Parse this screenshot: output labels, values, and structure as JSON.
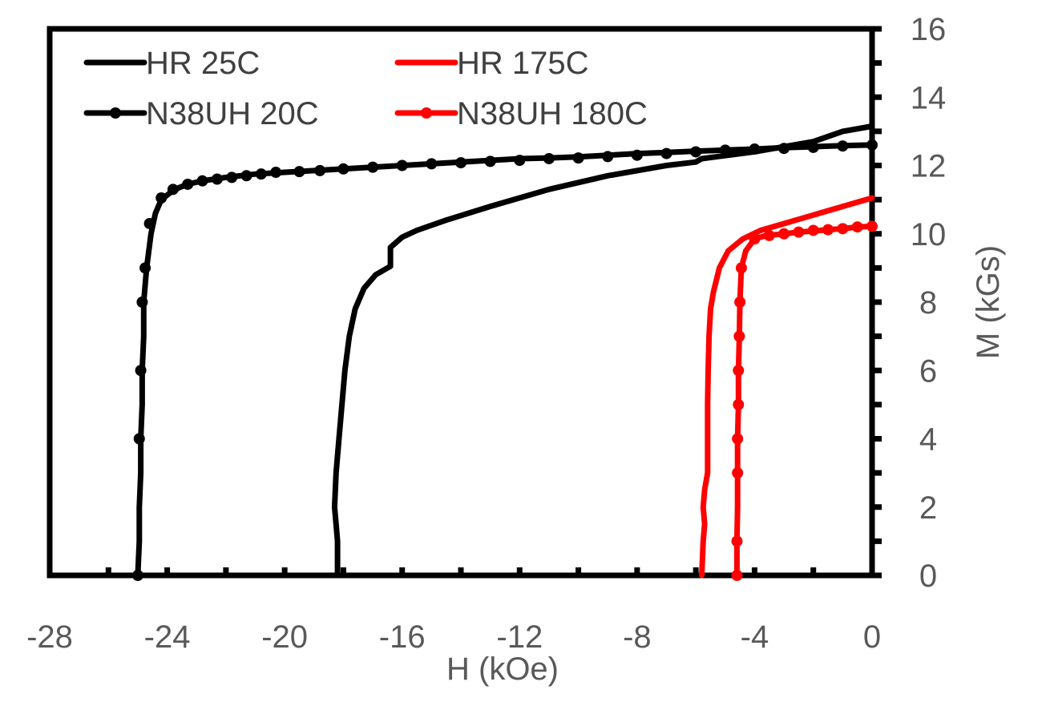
{
  "chart_data": {
    "type": "line",
    "title": "",
    "xlabel": "H (kOe)",
    "ylabel": "M (kGs)",
    "xlim": [
      -28,
      0
    ],
    "ylim": [
      0,
      16
    ],
    "x_ticks": [
      -28,
      -24,
      -20,
      -16,
      -12,
      -8,
      -4,
      0
    ],
    "y_ticks": [
      0,
      2,
      4,
      6,
      8,
      10,
      12,
      14,
      16
    ],
    "x_tick_labels": [
      "-28",
      "-24",
      "-20",
      "-16",
      "-12",
      "-8",
      "-4",
      "0"
    ],
    "y_tick_labels": [
      "0",
      "2",
      "4",
      "6",
      "8",
      "10",
      "12",
      "14",
      "16"
    ],
    "y_axis_position": "right",
    "grid": false,
    "legend_position": "top",
    "series": [
      {
        "name": "HR 25C",
        "color": "#000000",
        "markers": false,
        "points": [
          [
            -18.2,
            0
          ],
          [
            -18.2,
            1
          ],
          [
            -18.25,
            1.5
          ],
          [
            -18.3,
            2
          ],
          [
            -18.25,
            3
          ],
          [
            -18.15,
            4
          ],
          [
            -18.05,
            5
          ],
          [
            -17.95,
            6
          ],
          [
            -17.8,
            7
          ],
          [
            -17.6,
            7.8
          ],
          [
            -17.3,
            8.4
          ],
          [
            -16.9,
            8.8
          ],
          [
            -16.5,
            9.0
          ],
          [
            -16.4,
            9.05
          ],
          [
            -16.4,
            9.6
          ],
          [
            -16.0,
            9.9
          ],
          [
            -15.5,
            10.1
          ],
          [
            -14.5,
            10.4
          ],
          [
            -13.0,
            10.8
          ],
          [
            -11.0,
            11.3
          ],
          [
            -9.0,
            11.7
          ],
          [
            -7.0,
            12.0
          ],
          [
            -6.0,
            12.1
          ],
          [
            -5.8,
            12.2
          ],
          [
            -4.0,
            12.4
          ],
          [
            -2.0,
            12.7
          ],
          [
            -1.0,
            13.0
          ],
          [
            0,
            13.15
          ]
        ]
      },
      {
        "name": "HR 175C",
        "color": "#ff0000",
        "markers": false,
        "points": [
          [
            -5.8,
            0
          ],
          [
            -5.75,
            1
          ],
          [
            -5.7,
            1.5
          ],
          [
            -5.75,
            2
          ],
          [
            -5.7,
            2.5
          ],
          [
            -5.6,
            3
          ],
          [
            -5.6,
            4
          ],
          [
            -5.6,
            5
          ],
          [
            -5.58,
            6
          ],
          [
            -5.55,
            7
          ],
          [
            -5.5,
            7.8
          ],
          [
            -5.4,
            8.3
          ],
          [
            -5.2,
            9.0
          ],
          [
            -4.9,
            9.5
          ],
          [
            -4.4,
            9.85
          ],
          [
            -3.8,
            10.1
          ],
          [
            -3.0,
            10.3
          ],
          [
            -2.0,
            10.55
          ],
          [
            -1.0,
            10.8
          ],
          [
            0,
            11.05
          ]
        ]
      },
      {
        "name": "N38UH 20C",
        "color": "#000000",
        "markers": true,
        "points": [
          [
            -25.0,
            0
          ],
          [
            -24.95,
            1
          ],
          [
            -24.95,
            2
          ],
          [
            -24.9,
            3
          ],
          [
            -24.9,
            4
          ],
          [
            -24.85,
            5
          ],
          [
            -24.85,
            6
          ],
          [
            -24.8,
            7
          ],
          [
            -24.8,
            8
          ],
          [
            -24.7,
            9
          ],
          [
            -24.55,
            10
          ],
          [
            -24.4,
            10.6
          ],
          [
            -24.2,
            11.0
          ],
          [
            -23.9,
            11.2
          ],
          [
            -23.6,
            11.35
          ],
          [
            -23.3,
            11.45
          ],
          [
            -22.8,
            11.55
          ],
          [
            -22.0,
            11.65
          ],
          [
            -21.0,
            11.75
          ],
          [
            -20.0,
            11.8
          ],
          [
            -19.0,
            11.85
          ],
          [
            -18.0,
            11.9
          ],
          [
            -17.0,
            11.95
          ],
          [
            -16.0,
            12.0
          ],
          [
            -15.0,
            12.05
          ],
          [
            -14.0,
            12.1
          ],
          [
            -13.0,
            12.15
          ],
          [
            -12.0,
            12.2
          ],
          [
            -11.0,
            12.22
          ],
          [
            -10.0,
            12.25
          ],
          [
            -9.0,
            12.3
          ],
          [
            -8.0,
            12.35
          ],
          [
            -7.0,
            12.38
          ],
          [
            -6.0,
            12.42
          ],
          [
            -5.0,
            12.45
          ],
          [
            -4.0,
            12.48
          ],
          [
            -3.0,
            12.52
          ],
          [
            -2.0,
            12.55
          ],
          [
            -1.0,
            12.58
          ],
          [
            0,
            12.6
          ]
        ]
      },
      {
        "name": "N38UH 180C",
        "color": "#ff0000",
        "markers": true,
        "points": [
          [
            -4.6,
            0
          ],
          [
            -4.6,
            1
          ],
          [
            -4.58,
            2
          ],
          [
            -4.58,
            3
          ],
          [
            -4.58,
            4
          ],
          [
            -4.55,
            5
          ],
          [
            -4.55,
            6
          ],
          [
            -4.52,
            7
          ],
          [
            -4.5,
            8
          ],
          [
            -4.45,
            9
          ],
          [
            -4.3,
            9.5
          ],
          [
            -4.0,
            9.85
          ],
          [
            -3.6,
            9.95
          ],
          [
            -3.0,
            10.0
          ],
          [
            -2.5,
            10.05
          ],
          [
            -2.0,
            10.08
          ],
          [
            -1.5,
            10.12
          ],
          [
            -1.0,
            10.15
          ],
          [
            -0.5,
            10.2
          ],
          [
            0,
            10.22
          ]
        ]
      }
    ],
    "marker_points": {
      "N38UH 20C": [
        [
          -25.0,
          0
        ],
        [
          -24.95,
          4
        ],
        [
          -24.9,
          6
        ],
        [
          -24.85,
          8
        ],
        [
          -24.75,
          9
        ],
        [
          -24.6,
          10.3
        ],
        [
          -24.2,
          11.05
        ],
        [
          -23.8,
          11.3
        ],
        [
          -23.3,
          11.45
        ],
        [
          -22.8,
          11.55
        ],
        [
          -22.3,
          11.6
        ],
        [
          -21.8,
          11.65
        ],
        [
          -21.3,
          11.7
        ],
        [
          -20.8,
          11.75
        ],
        [
          -20.3,
          11.8
        ],
        [
          -19.5,
          11.82
        ],
        [
          -18.8,
          11.85
        ],
        [
          -18.0,
          11.9
        ],
        [
          -17.0,
          11.95
        ],
        [
          -16.0,
          12.0
        ],
        [
          -15.0,
          12.05
        ],
        [
          -14.0,
          12.08
        ],
        [
          -13.0,
          12.12
        ],
        [
          -12.0,
          12.15
        ],
        [
          -11.0,
          12.2
        ],
        [
          -10.0,
          12.22
        ],
        [
          -9.0,
          12.26
        ],
        [
          -8.0,
          12.3
        ],
        [
          -7.0,
          12.35
        ],
        [
          -6.0,
          12.4
        ],
        [
          -5.0,
          12.45
        ],
        [
          -4.0,
          12.48
        ],
        [
          -3.0,
          12.5
        ],
        [
          -2.0,
          12.53
        ],
        [
          -1.0,
          12.57
        ],
        [
          0,
          12.6
        ]
      ],
      "N38UH 180C": [
        [
          -4.6,
          0
        ],
        [
          -4.6,
          1
        ],
        [
          -4.58,
          3
        ],
        [
          -4.58,
          4
        ],
        [
          -4.55,
          5
        ],
        [
          -4.55,
          6
        ],
        [
          -4.52,
          7
        ],
        [
          -4.5,
          8
        ],
        [
          -4.45,
          9
        ],
        [
          -4.0,
          9.85
        ],
        [
          -3.5,
          9.95
        ],
        [
          -3.0,
          10.0
        ],
        [
          -2.5,
          10.05
        ],
        [
          -2.0,
          10.1
        ],
        [
          -1.5,
          10.12
        ],
        [
          -1.0,
          10.15
        ],
        [
          -0.5,
          10.2
        ],
        [
          0,
          10.22
        ]
      ]
    }
  }
}
